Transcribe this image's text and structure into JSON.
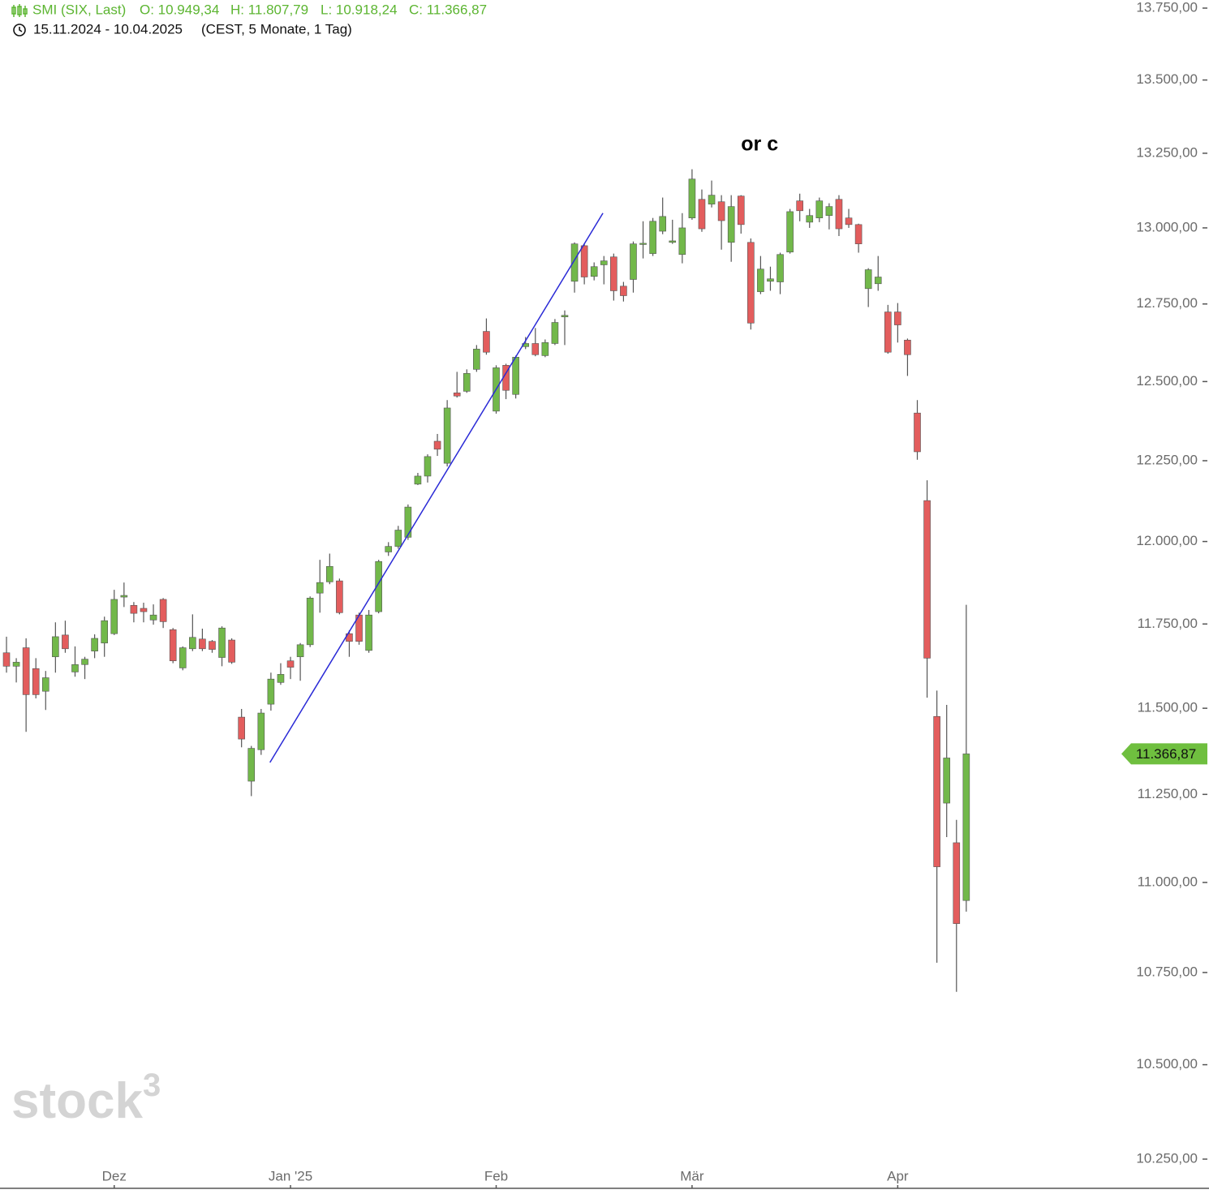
{
  "chart_data": {
    "type": "candlestick",
    "title": "SMI (SIX, Last)",
    "ohlc_labels": [
      "O: 10.949,34",
      "H: 11.807,79",
      "L: 10.918,24",
      "C: 11.366,87"
    ],
    "subtitle": "15.11.2024 - 10.04.2025",
    "period_note": "(CEST, 5 Monate, 1 Tag)",
    "watermark": [
      "stock",
      "3"
    ],
    "annotation": {
      "text": "or c",
      "x": 76.9,
      "y": 13277
    },
    "trendline": {
      "x": [
        26.9,
        60.9
      ],
      "values": [
        11342,
        13049
      ],
      "color": "#2a2ad6"
    },
    "last_price": {
      "value": 11366.87,
      "label": "11.366,87",
      "color": "#6fbf3f"
    },
    "up_color": "#72b84a",
    "down_color": "#e35d5d",
    "log_scale": true,
    "ylim": [
      10250,
      13750
    ],
    "yticks": [
      {
        "value": 10250,
        "label": "10.250,00"
      },
      {
        "value": 10500,
        "label": "10.500,00"
      },
      {
        "value": 10750,
        "label": "10.750,00"
      },
      {
        "value": 11000,
        "label": "11.000,00"
      },
      {
        "value": 11250,
        "label": "11.250,00"
      },
      {
        "value": 11500,
        "label": "11.500,00"
      },
      {
        "value": 11750,
        "label": "11.750,00"
      },
      {
        "value": 12000,
        "label": "12.000,00"
      },
      {
        "value": 12250,
        "label": "12.250,00"
      },
      {
        "value": 12500,
        "label": "12.500,00"
      },
      {
        "value": 12750,
        "label": "12.750,00"
      },
      {
        "value": 13000,
        "label": "13.000,00"
      },
      {
        "value": 13250,
        "label": "13.250,00"
      },
      {
        "value": 13500,
        "label": "13.500,00"
      },
      {
        "value": 13750,
        "label": "13.750,00"
      }
    ],
    "categories": [
      null,
      null,
      null,
      null,
      null,
      null,
      null,
      null,
      null,
      null,
      null,
      "Dez",
      null,
      null,
      null,
      null,
      null,
      null,
      null,
      null,
      null,
      null,
      null,
      null,
      null,
      null,
      null,
      null,
      null,
      "Jan '25",
      null,
      null,
      null,
      null,
      null,
      null,
      null,
      null,
      null,
      null,
      null,
      null,
      null,
      null,
      null,
      null,
      null,
      null,
      null,
      null,
      "Feb",
      null,
      null,
      null,
      null,
      null,
      null,
      null,
      null,
      null,
      null,
      null,
      null,
      null,
      null,
      null,
      null,
      null,
      null,
      null,
      "Mär",
      null,
      null,
      null,
      null,
      null,
      null,
      null,
      null,
      null,
      null,
      null,
      null,
      null,
      null,
      null,
      null,
      null,
      null,
      null,
      null,
      "Apr",
      null,
      null,
      null,
      null,
      null,
      null,
      null
    ],
    "open": [
      11664,
      11624,
      11679,
      11617,
      11550,
      11652,
      11717,
      11607,
      11629,
      11669,
      11693,
      11721,
      11831,
      11806,
      11797,
      11762,
      11824,
      11733,
      11619,
      11676,
      11705,
      11698,
      11650,
      11702,
      11474,
      11288,
      11379,
      11512,
      11576,
      11640,
      11652,
      11688,
      11843,
      11877,
      11880,
      11721,
      11777,
      11671,
      11787,
      11968,
      11985,
      12013,
      12177,
      12202,
      12311,
      12242,
      12464,
      12469,
      12539,
      12661,
      12406,
      12552,
      12459,
      12612,
      12622,
      12583,
      12622,
      12708,
      12824,
      12941,
      12840,
      12878,
      12904,
      12808,
      12830,
      12947,
      12915,
      12989,
      12952,
      12912,
      13033,
      13095,
      13079,
      13087,
      12952,
      13106,
      12952,
      12790,
      12824,
      12822,
      12920,
      13090,
      13019,
      13033,
      13041,
      13095,
      13033,
      13011,
      12800,
      12816,
      12724,
      12724,
      12633,
      12400,
      12126,
      11476,
      11225,
      11112,
      10949.34
    ],
    "high": [
      11712,
      11648,
      11707,
      11648,
      11610,
      11755,
      11760,
      11683,
      11652,
      11719,
      11772,
      11853,
      11875,
      11816,
      11814,
      11809,
      11828,
      11738,
      11683,
      11779,
      11736,
      11702,
      11743,
      11707,
      11498,
      11390,
      11498,
      11605,
      11633,
      11652,
      11693,
      11833,
      11944,
      11963,
      11887,
      11731,
      11784,
      11792,
      11944,
      11998,
      12048,
      12114,
      12212,
      12270,
      12334,
      12441,
      12531,
      12539,
      12617,
      12703,
      12552,
      12557,
      12583,
      12643,
      12672,
      12635,
      12701,
      12729,
      12952,
      12947,
      12886,
      12907,
      12915,
      12822,
      12955,
      13022,
      13033,
      13101,
      13027,
      13049,
      13196,
      13128,
      13158,
      13109,
      13109,
      13109,
      12965,
      12907,
      12872,
      12918,
      13063,
      13114,
      13063,
      13101,
      13082,
      13109,
      13063,
      13014,
      12867,
      12907,
      12747,
      12753,
      12638,
      12441,
      12189,
      11552,
      11510,
      11177,
      11807.79
    ],
    "low": [
      11605,
      11576,
      11431,
      11529,
      11495,
      11605,
      11664,
      11593,
      11586,
      11648,
      11652,
      11717,
      11801,
      11755,
      11755,
      11748,
      11738,
      11633,
      11612,
      11669,
      11669,
      11664,
      11624,
      11631,
      11386,
      11245,
      11364,
      11493,
      11569,
      11586,
      11581,
      11681,
      11784,
      11870,
      11779,
      11652,
      11688,
      11664,
      11782,
      11956,
      11978,
      12005,
      12174,
      12182,
      12265,
      12232,
      12449,
      12464,
      12531,
      12586,
      12398,
      12444,
      12446,
      12604,
      12581,
      12578,
      12617,
      12617,
      12787,
      12814,
      12827,
      12814,
      12761,
      12758,
      12787,
      12899,
      12907,
      12979,
      12947,
      12883,
      13027,
      12987,
      13068,
      12928,
      12888,
      12981,
      12667,
      12782,
      12793,
      12782,
      12915,
      13022,
      13000,
      13019,
      12995,
      12973,
      13000,
      12918,
      12740,
      12793,
      12589,
      12625,
      12518,
      12253,
      11531,
      10777,
      11128,
      10697,
      10918.24
    ],
    "close": [
      11624,
      11636,
      11540,
      11540,
      11590,
      11712,
      11676,
      11629,
      11645,
      11707,
      11760,
      11824,
      11836,
      11782,
      11787,
      11777,
      11757,
      11640,
      11679,
      11710,
      11676,
      11674,
      11738,
      11636,
      11410,
      11383,
      11486,
      11586,
      11600,
      11621,
      11688,
      11828,
      11875,
      11924,
      11784,
      11698,
      11698,
      11777,
      11939,
      11985,
      12035,
      12106,
      12202,
      12263,
      12286,
      12416,
      12454,
      12526,
      12604,
      12594,
      12544,
      12472,
      12578,
      12622,
      12586,
      12625,
      12690,
      12713,
      12947,
      12838,
      12872,
      12891,
      12793,
      12777,
      12947,
      12949,
      13022,
      13038,
      12957,
      13000,
      13163,
      12997,
      13109,
      13024,
      13071,
      13011,
      12688,
      12864,
      12832,
      12912,
      13054,
      13057,
      13041,
      13090,
      13071,
      12997,
      13011,
      12947,
      12862,
      12838,
      12594,
      12682,
      12586,
      12278,
      11648,
      11044,
      11355,
      10885,
      11366.87
    ]
  }
}
